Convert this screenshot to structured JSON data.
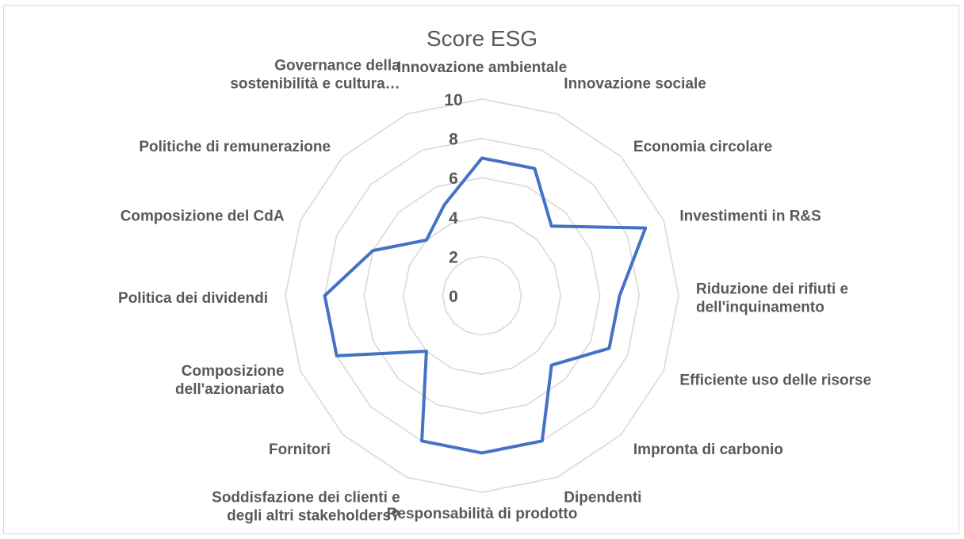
{
  "chart_data": {
    "type": "radar",
    "title": "Score ESG",
    "categories": [
      [
        "Innovazione ambientale"
      ],
      [
        "Innovazione sociale"
      ],
      [
        "Economia circolare"
      ],
      [
        "Investimenti in R&S"
      ],
      [
        "Riduzione dei rifiuti e",
        "dell'inquinamento"
      ],
      [
        "Efficiente uso delle risorse"
      ],
      [
        "Impronta di carbonio"
      ],
      [
        "Dipendenti"
      ],
      [
        "Responsabilità di prodotto"
      ],
      [
        "Soddisfazione dei clienti e",
        "degli altri stakeholders?"
      ],
      [
        "Fornitori"
      ],
      [
        "Composizione",
        "dell'azionariato"
      ],
      [
        "Politica dei dividendi"
      ],
      [
        "Composizione del CdA"
      ],
      [
        "Politiche di remunerazione"
      ],
      [
        "Governance della",
        "sostenibilità e cultura…"
      ]
    ],
    "series": [
      {
        "values": [
          7,
          7,
          5,
          9,
          7,
          7,
          5,
          8,
          8,
          8,
          4,
          8,
          8,
          6,
          4,
          5
        ]
      }
    ],
    "rlim": [
      0,
      10
    ],
    "ticks": [
      "0",
      "2",
      "4",
      "6",
      "8",
      "10"
    ],
    "tick_values": [
      0,
      2,
      4,
      6,
      8,
      10
    ],
    "grid": true,
    "legend": "none",
    "colors": {
      "series": "#4472c4",
      "grid": "#d9d9d9",
      "text": "#595959"
    }
  }
}
